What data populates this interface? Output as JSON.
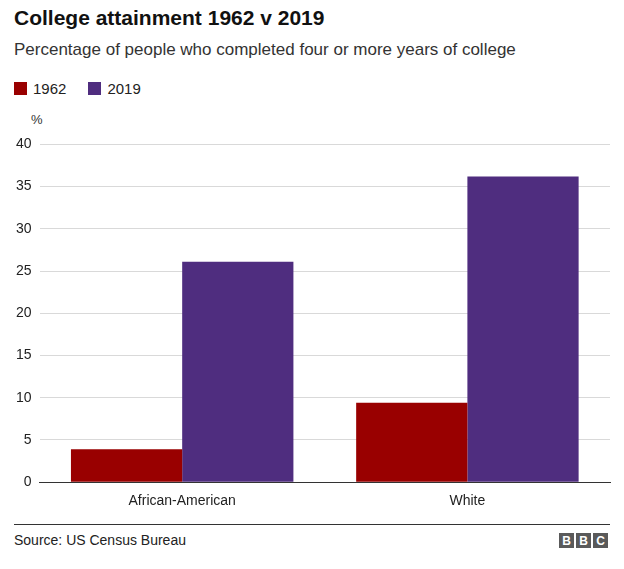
{
  "chart_data": {
    "type": "bar",
    "title": "College attainment 1962 v 2019",
    "subtitle": "Percentage of people who completed four or more years of college",
    "y_label": "%",
    "categories": [
      "African-American",
      "White"
    ],
    "series": [
      {
        "name": "1962",
        "color": "#990000",
        "values": [
          3.9,
          9.4
        ]
      },
      {
        "name": "2019",
        "color": "#4f2d7f",
        "values": [
          26.1,
          36.2
        ]
      }
    ],
    "ylim": [
      0,
      40
    ],
    "yticks": [
      0,
      5,
      10,
      15,
      20,
      25,
      30,
      35,
      40
    ],
    "grid": true,
    "legend": "top-left",
    "source": "Source: US Census Bureau",
    "logo": "BBC"
  }
}
